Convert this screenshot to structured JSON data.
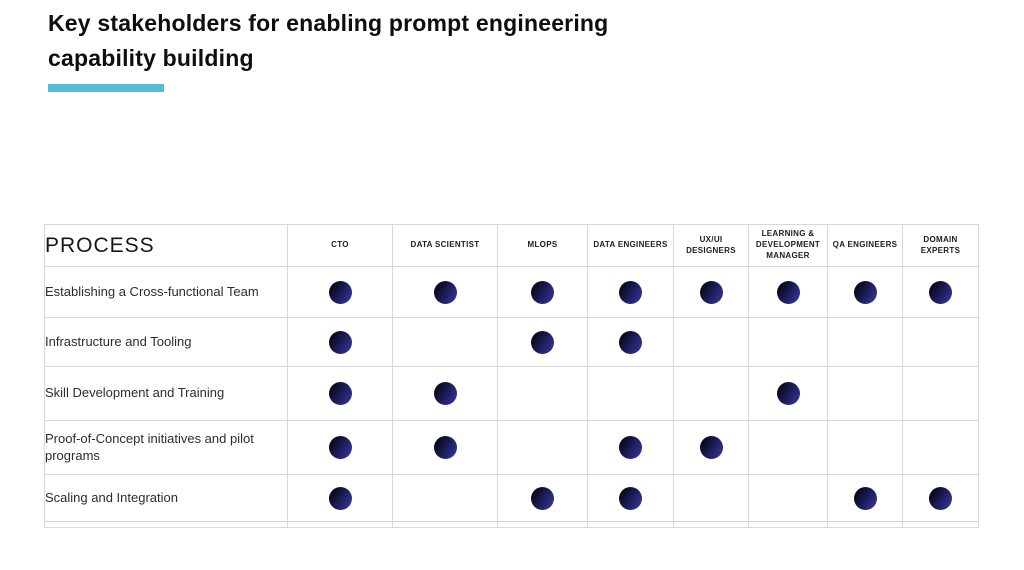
{
  "slide": {
    "title": "Key stakeholders for enabling prompt engineering capability building",
    "accent_color": "#58bbd8"
  },
  "chart_data": {
    "type": "table",
    "title": "Key stakeholders for enabling prompt engineering capability building",
    "process_label": "PROCESS",
    "columns": [
      "CTO",
      "DATA SCIENTIST",
      "MLOPS",
      "DATA ENGINEERS",
      "UX/UI DESIGNERS",
      "LEARNING & DEVELOPMENT MANAGER",
      "QA ENGINEERS",
      "DOMAIN EXPERTS"
    ],
    "rows": [
      {
        "label": "Establishing a Cross-functional Team",
        "marks": [
          1,
          1,
          1,
          1,
          1,
          1,
          1,
          1
        ]
      },
      {
        "label": "Infrastructure and Tooling",
        "marks": [
          1,
          0,
          1,
          1,
          0,
          0,
          0,
          0
        ]
      },
      {
        "label": "Skill Development and Training",
        "marks": [
          1,
          1,
          0,
          0,
          0,
          1,
          0,
          0
        ]
      },
      {
        "label": "Proof-of-Concept initiatives and pilot programs",
        "marks": [
          1,
          1,
          0,
          1,
          1,
          0,
          0,
          0
        ]
      },
      {
        "label": "Scaling and Integration",
        "marks": [
          1,
          0,
          1,
          1,
          0,
          0,
          1,
          1
        ]
      }
    ],
    "mark_symbol": "filled-dot",
    "dot_gradient": [
      "#09091d",
      "#34349f"
    ],
    "grid_color": "#d8d8d8"
  }
}
